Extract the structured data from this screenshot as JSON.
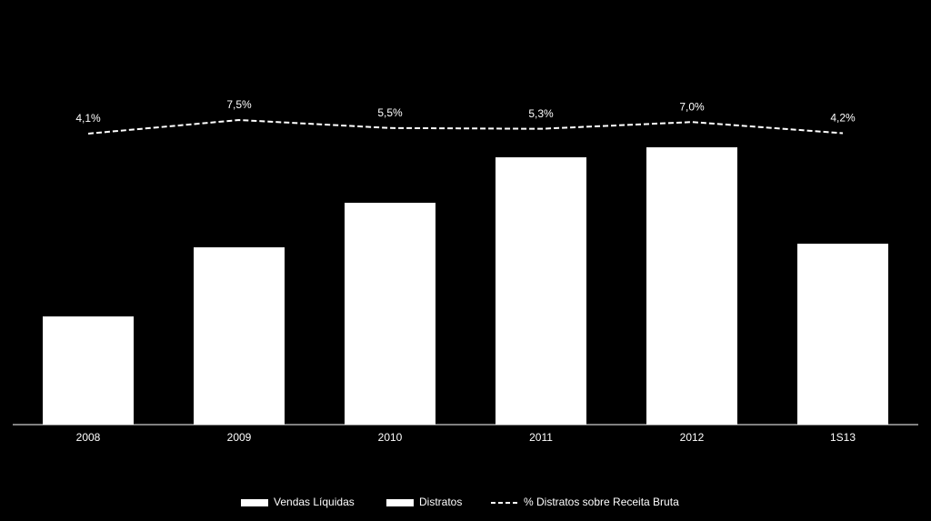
{
  "chart_data": {
    "type": "bar",
    "categories": [
      "2008",
      "2009",
      "2010",
      "2011",
      "2012",
      "1S13"
    ],
    "series": [
      {
        "name": "Vendas Líquidas",
        "color": "#ffffff",
        "values": [
          119,
          195,
          244,
          294,
          305,
          199
        ]
      },
      {
        "name": "Distratos",
        "color": "#ffffff",
        "values": [
          null,
          null,
          null,
          null,
          null,
          null
        ]
      },
      {
        "name": "% Distratos sobre Receita Bruta",
        "type": "line",
        "color": "#ffffff",
        "dashed": true,
        "axis": "y2",
        "values": [
          4.1,
          7.5,
          5.5,
          5.3,
          7.0,
          4.2
        ],
        "value_labels": [
          "4,1%",
          "7,5%",
          "5,5%",
          "5,3%",
          "7,0%",
          "4,2%"
        ]
      }
    ],
    "legend": "bottom"
  }
}
